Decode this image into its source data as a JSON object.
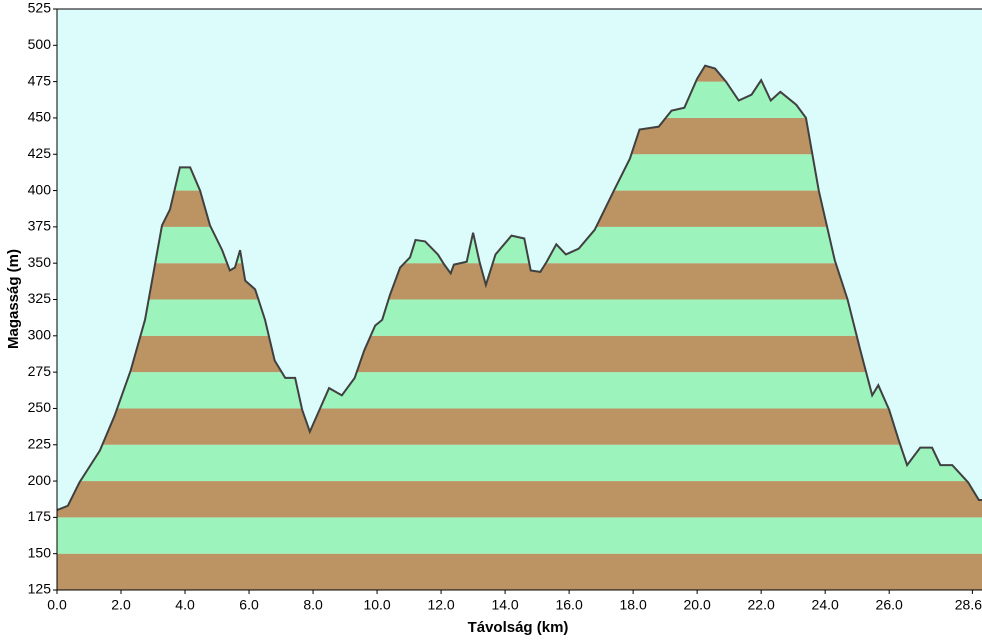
{
  "chart_data": {
    "type": "area",
    "x_label": "Távolság   (km)",
    "y_label": "Magasság (m)",
    "x": [
      0,
      0.34,
      0.7,
      1.34,
      1.8,
      2.3,
      2.75,
      3.06,
      3.28,
      3.53,
      3.84,
      4.16,
      4.47,
      4.78,
      5.16,
      5.4,
      5.56,
      5.72,
      5.88,
      6.19,
      6.5,
      6.8,
      7.13,
      7.44,
      7.66,
      7.9,
      8.2,
      8.5,
      8.9,
      9.3,
      9.6,
      9.94,
      10.16,
      10.4,
      10.72,
      11.03,
      11.2,
      11.5,
      11.9,
      12.1,
      12.3,
      12.4,
      12.8,
      13.0,
      13.2,
      13.4,
      13.7,
      14.2,
      14.6,
      14.8,
      15.1,
      15.3,
      15.6,
      15.9,
      16.3,
      16.8,
      17.4,
      17.9,
      18.2,
      18.8,
      19.2,
      19.6,
      20.0,
      20.25,
      20.56,
      20.9,
      21.3,
      21.7,
      22.0,
      22.3,
      22.6,
      23.1,
      23.4,
      23.8,
      24.3,
      24.7,
      25.1,
      25.47,
      25.66,
      26.0,
      26.3,
      26.56,
      26.97,
      27.34,
      27.6,
      27.97,
      28.47,
      28.8,
      28.9
    ],
    "values": [
      180,
      183,
      199,
      221,
      245,
      276,
      311,
      349,
      376,
      387,
      416,
      416,
      400,
      376,
      359,
      345,
      347,
      359,
      338,
      332,
      311,
      283,
      271,
      271,
      249,
      234,
      249,
      264,
      259,
      271,
      290,
      307,
      311,
      328,
      347,
      354,
      366,
      365,
      356,
      349,
      343,
      349,
      351,
      371,
      351,
      335,
      356,
      369,
      367,
      345,
      344,
      351,
      363,
      356,
      360,
      373,
      400,
      422,
      442,
      444,
      455,
      457,
      477,
      486,
      484,
      475,
      462,
      466,
      476,
      462,
      468,
      459,
      450,
      400,
      352,
      325,
      290,
      259,
      266,
      249,
      228,
      211,
      223,
      223,
      211,
      211,
      199,
      187,
      187
    ],
    "xlim": [
      0,
      28.9
    ],
    "ylim": [
      125,
      525
    ],
    "xticks": [
      {
        "value": 0,
        "label": "0.0"
      },
      {
        "value": 2,
        "label": "2.0"
      },
      {
        "value": 4,
        "label": "4.0"
      },
      {
        "value": 6,
        "label": "6.0"
      },
      {
        "value": 8,
        "label": "8.0"
      },
      {
        "value": 10,
        "label": "10.0"
      },
      {
        "value": 12,
        "label": "12.0"
      },
      {
        "value": 14,
        "label": "14.0"
      },
      {
        "value": 16,
        "label": "16.0"
      },
      {
        "value": 18,
        "label": "18.0"
      },
      {
        "value": 20,
        "label": "20.0"
      },
      {
        "value": 22,
        "label": "22.0"
      },
      {
        "value": 24,
        "label": "24.0"
      },
      {
        "value": 26,
        "label": "26.0"
      },
      28.6
    ],
    "yticks": [
      125,
      150,
      175,
      200,
      225,
      250,
      275,
      300,
      325,
      350,
      375,
      400,
      425,
      450,
      475,
      500,
      525
    ],
    "background": "#dcfcfc",
    "band_colors": [
      "#bc9464",
      "#9cf4bc"
    ],
    "line_color": "#404040"
  }
}
